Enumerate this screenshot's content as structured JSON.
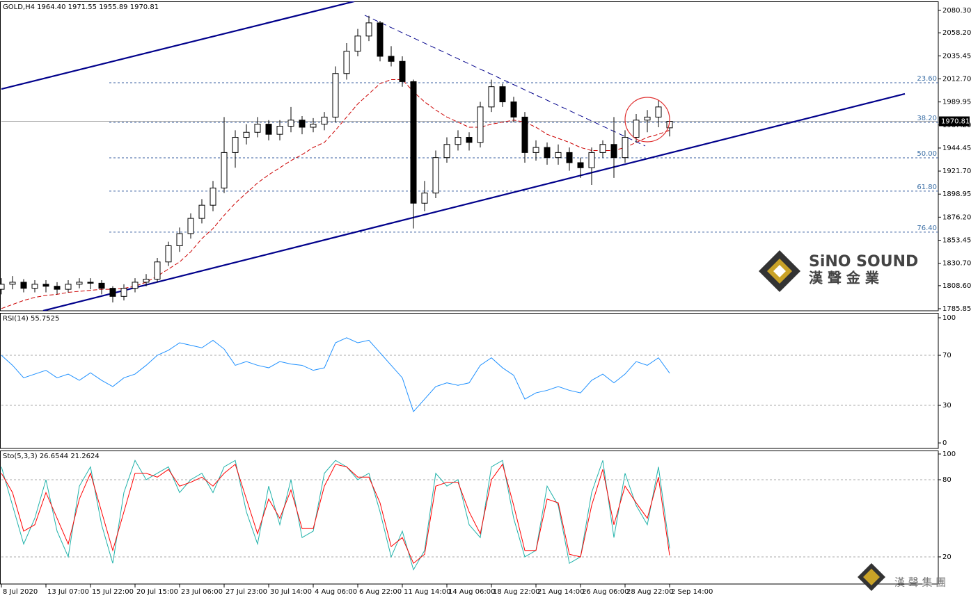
{
  "chart_data": [
    {
      "type": "candlestick",
      "title": "GOLD,H4 1964.40 1971.55 1955.89 1970.81",
      "x": [
        0,
        4,
        8,
        12,
        16,
        20,
        24,
        28,
        32,
        36,
        40,
        44,
        48,
        52,
        56,
        60,
        64,
        68,
        72,
        76,
        80,
        84,
        88,
        92,
        96,
        100,
        104,
        108,
        112,
        116,
        120,
        124,
        128,
        132,
        136,
        140,
        144,
        148,
        152,
        156,
        160,
        164,
        168,
        172,
        176,
        180,
        184,
        188,
        192,
        196,
        200,
        204,
        208,
        212,
        216,
        220,
        224,
        228,
        232,
        236,
        240
      ],
      "open": [
        1805,
        1810,
        1812,
        1806,
        1810,
        1808,
        1805,
        1810,
        1812,
        1811,
        1806,
        1798,
        1806,
        1812,
        1815,
        1832,
        1848,
        1860,
        1875,
        1888,
        1905,
        1940,
        1955,
        1960,
        1968,
        1958,
        1966,
        1972,
        1965,
        1968,
        1975,
        2018,
        2040,
        2055,
        2068,
        2035,
        2030,
        2010,
        1890,
        1900,
        1935,
        1948,
        1955,
        1950,
        1985,
        2005,
        1990,
        1975,
        1940,
        1945,
        1935,
        1940,
        1930,
        1925,
        1940,
        1948,
        1935,
        1955,
        1972,
        1975,
        1964.4
      ],
      "high": [
        1816,
        1818,
        1815,
        1814,
        1814,
        1812,
        1814,
        1816,
        1816,
        1814,
        1808,
        1810,
        1816,
        1820,
        1836,
        1852,
        1866,
        1880,
        1894,
        1912,
        1975,
        1962,
        1968,
        1975,
        1972,
        1972,
        1985,
        1976,
        1974,
        1980,
        2025,
        2048,
        2062,
        2075,
        2070,
        2045,
        2035,
        2012,
        1912,
        1942,
        1955,
        1962,
        1960,
        1990,
        2012,
        2008,
        1995,
        1980,
        1952,
        1950,
        1948,
        1945,
        1935,
        1945,
        1952,
        1975,
        1962,
        1978,
        1982,
        1992,
        1971.55
      ],
      "low": [
        1800,
        1805,
        1802,
        1802,
        1802,
        1800,
        1802,
        1806,
        1805,
        1800,
        1792,
        1794,
        1802,
        1808,
        1812,
        1828,
        1842,
        1855,
        1870,
        1882,
        1900,
        1925,
        1948,
        1955,
        1952,
        1952,
        1960,
        1958,
        1960,
        1962,
        1970,
        2012,
        2035,
        2050,
        2030,
        2025,
        2005,
        1865,
        1882,
        1895,
        1930,
        1942,
        1942,
        1945,
        1980,
        1985,
        1970,
        1930,
        1932,
        1928,
        1928,
        1922,
        1915,
        1908,
        1935,
        1915,
        1930,
        1950,
        1960,
        1965,
        1955.89
      ],
      "close": [
        1810,
        1812,
        1806,
        1810,
        1808,
        1805,
        1810,
        1812,
        1811,
        1806,
        1798,
        1806,
        1812,
        1815,
        1832,
        1848,
        1860,
        1875,
        1888,
        1905,
        1940,
        1955,
        1960,
        1968,
        1958,
        1966,
        1972,
        1965,
        1968,
        1975,
        2018,
        2040,
        2055,
        2068,
        2035,
        2030,
        2010,
        1890,
        1900,
        1935,
        1948,
        1955,
        1950,
        1985,
        2005,
        1990,
        1975,
        1940,
        1945,
        1935,
        1940,
        1930,
        1925,
        1940,
        1948,
        1935,
        1955,
        1972,
        1975,
        1985,
        1970.81
      ],
      "up_color": "#ffffff",
      "down_color": "#000000",
      "ma": {
        "color": "#cc0000",
        "values": [
          1786,
          1790,
          1794,
          1797,
          1799,
          1800,
          1802,
          1803,
          1804,
          1805,
          1805,
          1806,
          1808,
          1812,
          1818,
          1825,
          1832,
          1842,
          1855,
          1865,
          1878,
          1890,
          1900,
          1910,
          1918,
          1925,
          1932,
          1938,
          1945,
          1950,
          1962,
          1975,
          1988,
          1998,
          2008,
          2012,
          2012,
          2000,
          1990,
          1982,
          1975,
          1970,
          1965,
          1965,
          1968,
          1970,
          1972,
          1970,
          1965,
          1958,
          1954,
          1950,
          1945,
          1942,
          1942,
          1942,
          1945,
          1950,
          1955,
          1958,
          1962
        ]
      },
      "trendlines": [
        {
          "x": [
            0,
            126.75
          ],
          "y": [
            2002.7,
            2089.2
          ],
          "color": "#00008b",
          "style": "solid"
        },
        {
          "x": [
            15,
            324.5
          ],
          "y": [
            1783.8,
            1998.0
          ],
          "color": "#00008b",
          "style": "solid"
        },
        {
          "x": [
            130.5,
            231.25
          ],
          "y": [
            2075.5,
            1946.5
          ],
          "color": "#00008b",
          "style": "dashed"
        }
      ],
      "fib_levels": [
        {
          "label": "23.60",
          "price": 2008.9
        },
        {
          "label": "38.20",
          "price": 1969.8
        },
        {
          "label": "50.00",
          "price": 1934.8
        },
        {
          "label": "61.80",
          "price": 1901.9
        },
        {
          "label": "76.40",
          "price": 1861.4
        }
      ],
      "last_price": 1970.81,
      "xlim": [
        0,
        336.5
      ],
      "ylim": [
        1783.8,
        2089.2
      ],
      "yticks": [
        {
          "value": 2080.3,
          "label": "2080.30"
        },
        {
          "value": 2058.2,
          "label": "2058.20"
        },
        {
          "value": 2035.45,
          "label": "2035.45"
        },
        {
          "value": 2012.7,
          "label": "2012.70"
        },
        {
          "value": 1989.95,
          "label": "1989.95"
        },
        {
          "value": 1967.2,
          "label": "1967.20"
        },
        {
          "value": 1944.45,
          "label": "1944.45"
        },
        {
          "value": 1921.7,
          "label": "1921.70"
        },
        {
          "value": 1898.95,
          "label": "1898.95"
        },
        {
          "value": 1876.2,
          "label": "1876.20"
        },
        {
          "value": 1853.45,
          "label": "1853.45"
        },
        {
          "value": 1830.7,
          "label": "1830.70"
        },
        {
          "value": 1808.6,
          "label": "1808.60"
        },
        {
          "value": 1785.85,
          "label": "1785.85"
        }
      ],
      "xticks": [
        {
          "value": 0,
          "label": "8 Jul 2020"
        },
        {
          "value": 16,
          "label": "13 Jul 07:00"
        },
        {
          "value": 32,
          "label": "15 Jul 22:00"
        },
        {
          "value": 48,
          "label": "20 Jul 15:00"
        },
        {
          "value": 64,
          "label": "23 Jul 06:00"
        },
        {
          "value": 80,
          "label": "27 Jul 23:00"
        },
        {
          "value": 96,
          "label": "30 Jul 14:00"
        },
        {
          "value": 112,
          "label": "4 Aug 06:00"
        },
        {
          "value": 128,
          "label": "6 Aug 22:00"
        },
        {
          "value": 144,
          "label": "11 Aug 14:00"
        },
        {
          "value": 160,
          "label": "14 Aug 06:00"
        },
        {
          "value": 176,
          "label": "18 Aug 22:00"
        },
        {
          "value": 192,
          "label": "21 Aug 14:00"
        },
        {
          "value": 208,
          "label": "26 Aug 06:00"
        },
        {
          "value": 224,
          "label": "28 Aug 22:00"
        },
        {
          "value": 240,
          "label": "2 Sep 14:00"
        }
      ]
    },
    {
      "type": "line",
      "title": "RSI(14) 55.7525",
      "color": "#1e90ff",
      "values": [
        70,
        62,
        52,
        55,
        58,
        52,
        55,
        50,
        56,
        50,
        45,
        52,
        55,
        62,
        70,
        74,
        80,
        78,
        76,
        82,
        75,
        62,
        65,
        62,
        60,
        65,
        63,
        62,
        58,
        60,
        80,
        84,
        80,
        82,
        72,
        62,
        52,
        25,
        35,
        45,
        48,
        46,
        48,
        62,
        68,
        60,
        54,
        35,
        40,
        42,
        45,
        42,
        40,
        50,
        55,
        48,
        55,
        65,
        62,
        68,
        55.75
      ],
      "ylim": [
        -4.4,
        103.9
      ],
      "yticks": [
        100,
        70,
        30,
        0
      ],
      "grid": true
    },
    {
      "type": "line",
      "title": "Sto(5,3,3) 26.6544 21.2624",
      "series": [
        {
          "color": "#20b2aa",
          "values": [
            90,
            60,
            30,
            50,
            80,
            40,
            20,
            75,
            90,
            45,
            15,
            70,
            95,
            80,
            85,
            90,
            70,
            80,
            85,
            70,
            90,
            95,
            55,
            30,
            75,
            45,
            80,
            35,
            40,
            85,
            95,
            90,
            80,
            85,
            55,
            20,
            40,
            10,
            25,
            85,
            75,
            80,
            45,
            35,
            90,
            95,
            50,
            20,
            25,
            75,
            60,
            15,
            20,
            70,
            95,
            35,
            85,
            60,
            45,
            90,
            26.65
          ]
        },
        {
          "color": "#ff0000",
          "values": [
            85,
            70,
            40,
            45,
            70,
            50,
            30,
            65,
            85,
            55,
            25,
            55,
            85,
            85,
            82,
            88,
            75,
            78,
            82,
            75,
            85,
            92,
            65,
            38,
            65,
            50,
            72,
            42,
            42,
            75,
            92,
            90,
            82,
            82,
            62,
            28,
            35,
            15,
            22,
            75,
            78,
            78,
            55,
            38,
            80,
            92,
            60,
            25,
            25,
            65,
            62,
            22,
            20,
            60,
            88,
            45,
            75,
            62,
            50,
            82,
            21.26
          ]
        }
      ],
      "ylim": [
        -1.1,
        102.7
      ],
      "yticks": [
        100,
        80,
        20
      ],
      "grid": true
    }
  ],
  "logo": {
    "brand": "SiNO SOUND",
    "chinese": "漢 聲 金 業"
  },
  "footer_logo": "漢 聲 集 團"
}
